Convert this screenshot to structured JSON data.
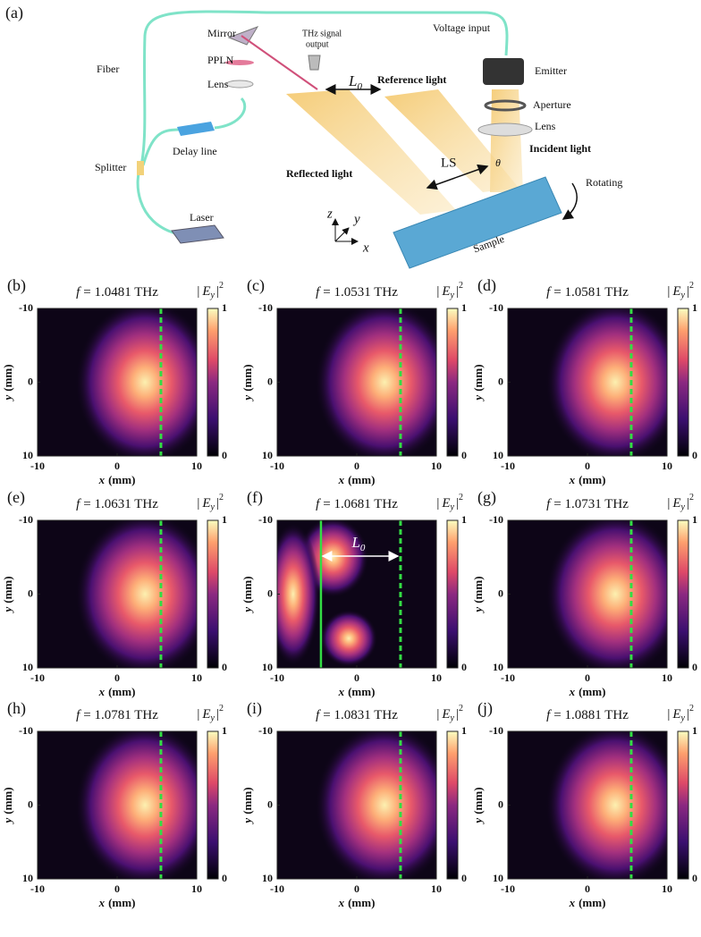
{
  "diagram": {
    "label": "(a)",
    "mirror": "Mirror",
    "ppln": "PPLN",
    "lens_left": "Lens",
    "thz_output": [
      "THz signal",
      "output"
    ],
    "voltage_input": "Voltage input",
    "emitter": "Emitter",
    "aperture": "Aperture",
    "lens_right": "Lens",
    "incident": "Incident light",
    "fiber": "Fiber",
    "delay_line": "Delay line",
    "splitter": "Splitter",
    "laser": "Laser",
    "reference": "Reference light",
    "reflected": "Reflected light",
    "ls": "LS",
    "theta": "θ",
    "rotating": "Rotating",
    "sample": "Sample",
    "l0": [
      "L",
      "0"
    ],
    "axes": [
      "z",
      "y",
      "x"
    ]
  },
  "axes": {
    "xlim": [
      -10,
      10
    ],
    "xticks": [
      -10,
      0,
      10
    ],
    "ylim": [
      -10,
      10
    ],
    "yticks": [
      -10,
      0,
      10
    ],
    "clim": [
      0,
      1
    ],
    "cticks": [
      0,
      1
    ],
    "xlabel": {
      "var": "x",
      "unit": "(mm)"
    },
    "ylabel": {
      "var": "y",
      "unit": "(mm)"
    },
    "colorbar_label": {
      "bar": "|",
      "var": "E",
      "sub": "y",
      "sup": "2"
    }
  },
  "panels": [
    {
      "label": "(b)",
      "title_symbol": "f",
      "title_value": "= 1.0481 THz",
      "marker_x": 5.5
    },
    {
      "label": "(c)",
      "title_symbol": "f",
      "title_value": "= 1.0531 THz",
      "marker_x": 5.5
    },
    {
      "label": "(d)",
      "title_symbol": "f",
      "title_value": "= 1.0581 THz",
      "marker_x": 5.5
    },
    {
      "label": "(e)",
      "title_symbol": "f",
      "title_value": "= 1.0631 THz",
      "marker_x": 5.5
    },
    {
      "label": "(f)",
      "title_symbol": "f",
      "title_value": "= 1.0681 THz",
      "marker_x": 5.5,
      "ref_x": -4.5,
      "ref_label": [
        "L",
        "0"
      ]
    },
    {
      "label": "(g)",
      "title_symbol": "f",
      "title_value": "= 1.0731 THz",
      "marker_x": 5.5
    },
    {
      "label": "(h)",
      "title_symbol": "f",
      "title_value": "= 1.0781 THz",
      "marker_x": 5.5
    },
    {
      "label": "(i)",
      "title_symbol": "f",
      "title_value": "= 1.0831 THz",
      "marker_x": 5.5
    },
    {
      "label": "(j)",
      "title_symbol": "f",
      "title_value": "= 1.0881 THz",
      "marker_x": 5.5
    }
  ]
}
